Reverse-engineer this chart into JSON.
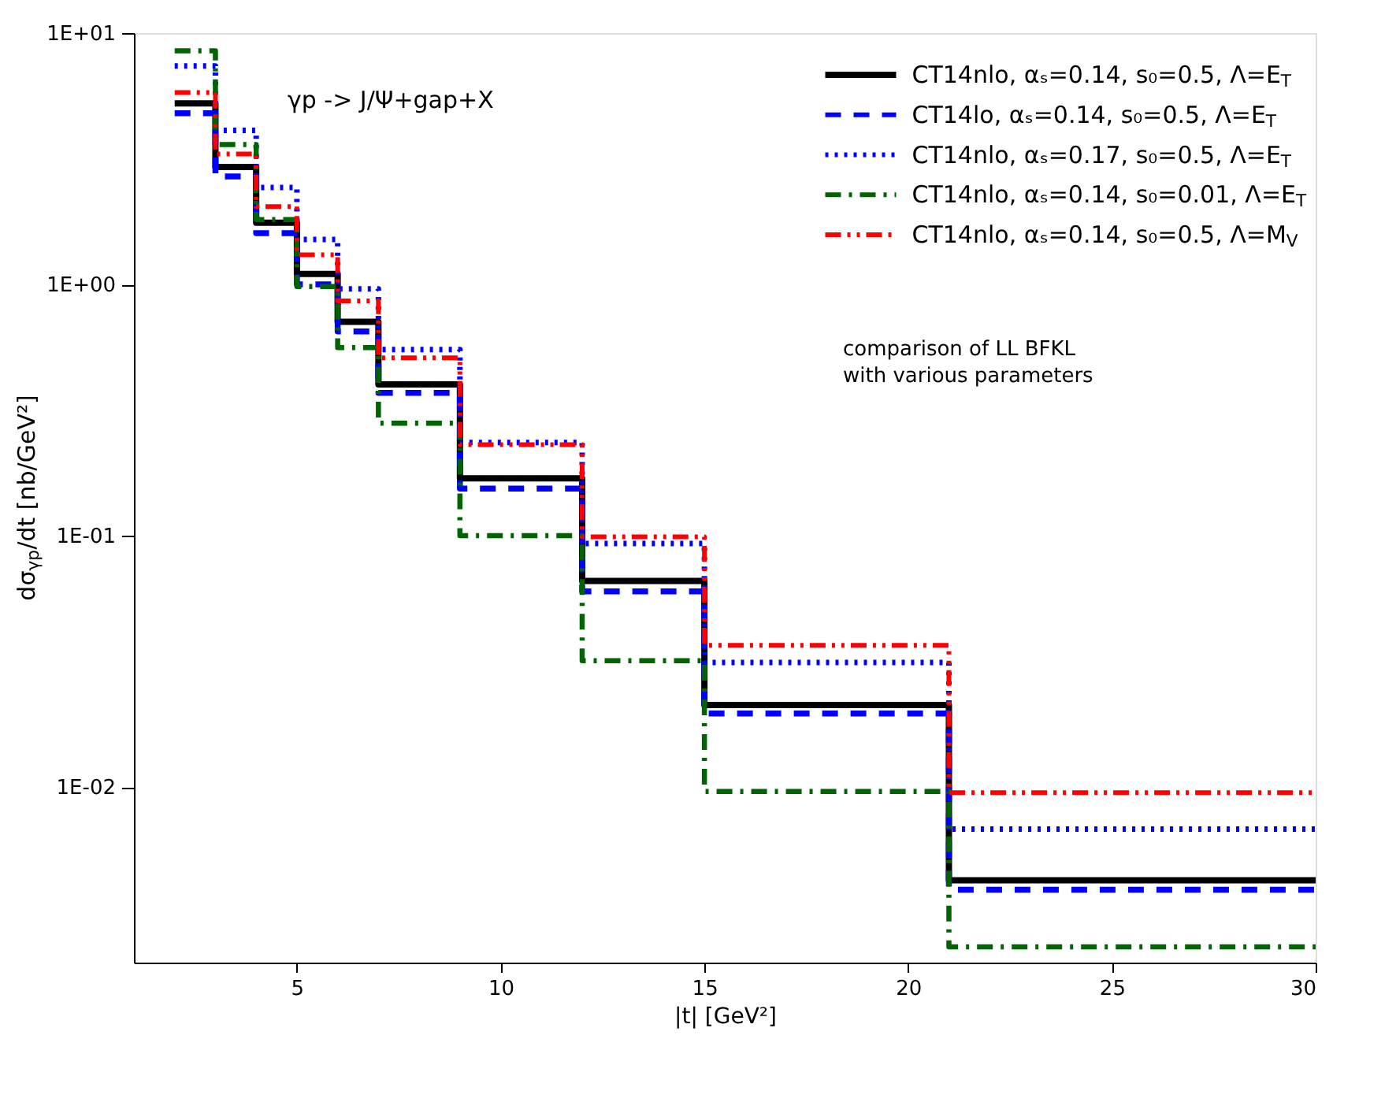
{
  "chart_data": {
    "type": "histogram",
    "xlabel": "|t| [GeV²]",
    "ylabel": "dσ$_{γp}$/dt [nb/GeV²]",
    "annotations": [
      "γp -> J/Ψ+gap+X",
      "comparison of LL BFKL\nwith various parameters"
    ],
    "bins": [
      2,
      3,
      4,
      5,
      6,
      7,
      9,
      12,
      15,
      21,
      30
    ],
    "series": [
      {
        "name": "CT14nlo, αₛ=0.14, s₀=0.5, Λ=E$_{T}$",
        "color": "#000000",
        "line_style": "solid",
        "values": [
          5.25,
          2.93,
          1.76,
          1.1,
          0.71,
          0.4,
          0.169,
          0.066,
          0.0212,
          0.00425
        ]
      },
      {
        "name": "CT14lo, αₛ=0.14, s₀=0.5, Λ=E$_{T}$",
        "color": "#0000ff",
        "line_style": "dashed",
        "values": [
          4.8,
          2.69,
          1.6,
          1.0,
          0.65,
          0.37,
          0.154,
          0.06,
          0.0196,
          0.0039
        ]
      },
      {
        "name": "CT14nlo, αₛ=0.17, s₀=0.5, Λ=E$_{T}$",
        "color": "#0000ff",
        "line_style": "dotted",
        "values": [
          7.4,
          4.1,
          2.43,
          1.51,
          0.96,
          0.55,
          0.235,
          0.093,
          0.0313,
          0.0068
        ]
      },
      {
        "name": "CT14nlo, αₛ=0.14, s₀=0.01, Λ=E$_{T}$",
        "color": "#006400",
        "line_style": "dashdot",
        "values": [
          8.5,
          3.6,
          1.81,
          0.98,
          0.56,
          0.28,
          0.1,
          0.0318,
          0.0096,
          0.00231
        ]
      },
      {
        "name": "CT14nlo, αₛ=0.14, s₀=0.5, Λ=M$_{V}$",
        "color": "#ff0000",
        "line_style": "dashdotdot",
        "values": [
          5.8,
          3.3,
          2.04,
          1.31,
          0.86,
          0.51,
          0.23,
          0.099,
          0.0366,
          0.0095
        ]
      }
    ],
    "xlim": [
      1,
      30
    ],
    "xticks": [
      5,
      10,
      15,
      20,
      25,
      30
    ],
    "ylim": [
      0.002,
      10
    ],
    "yticks": [
      {
        "value": 0.01,
        "label": "1E-02"
      },
      {
        "value": 0.1,
        "label": "1E-01"
      },
      {
        "value": 1,
        "label": "1E+00"
      },
      {
        "value": 10,
        "label": "1E+01"
      }
    ],
    "log": "y",
    "grid": false,
    "legend": "top right"
  }
}
